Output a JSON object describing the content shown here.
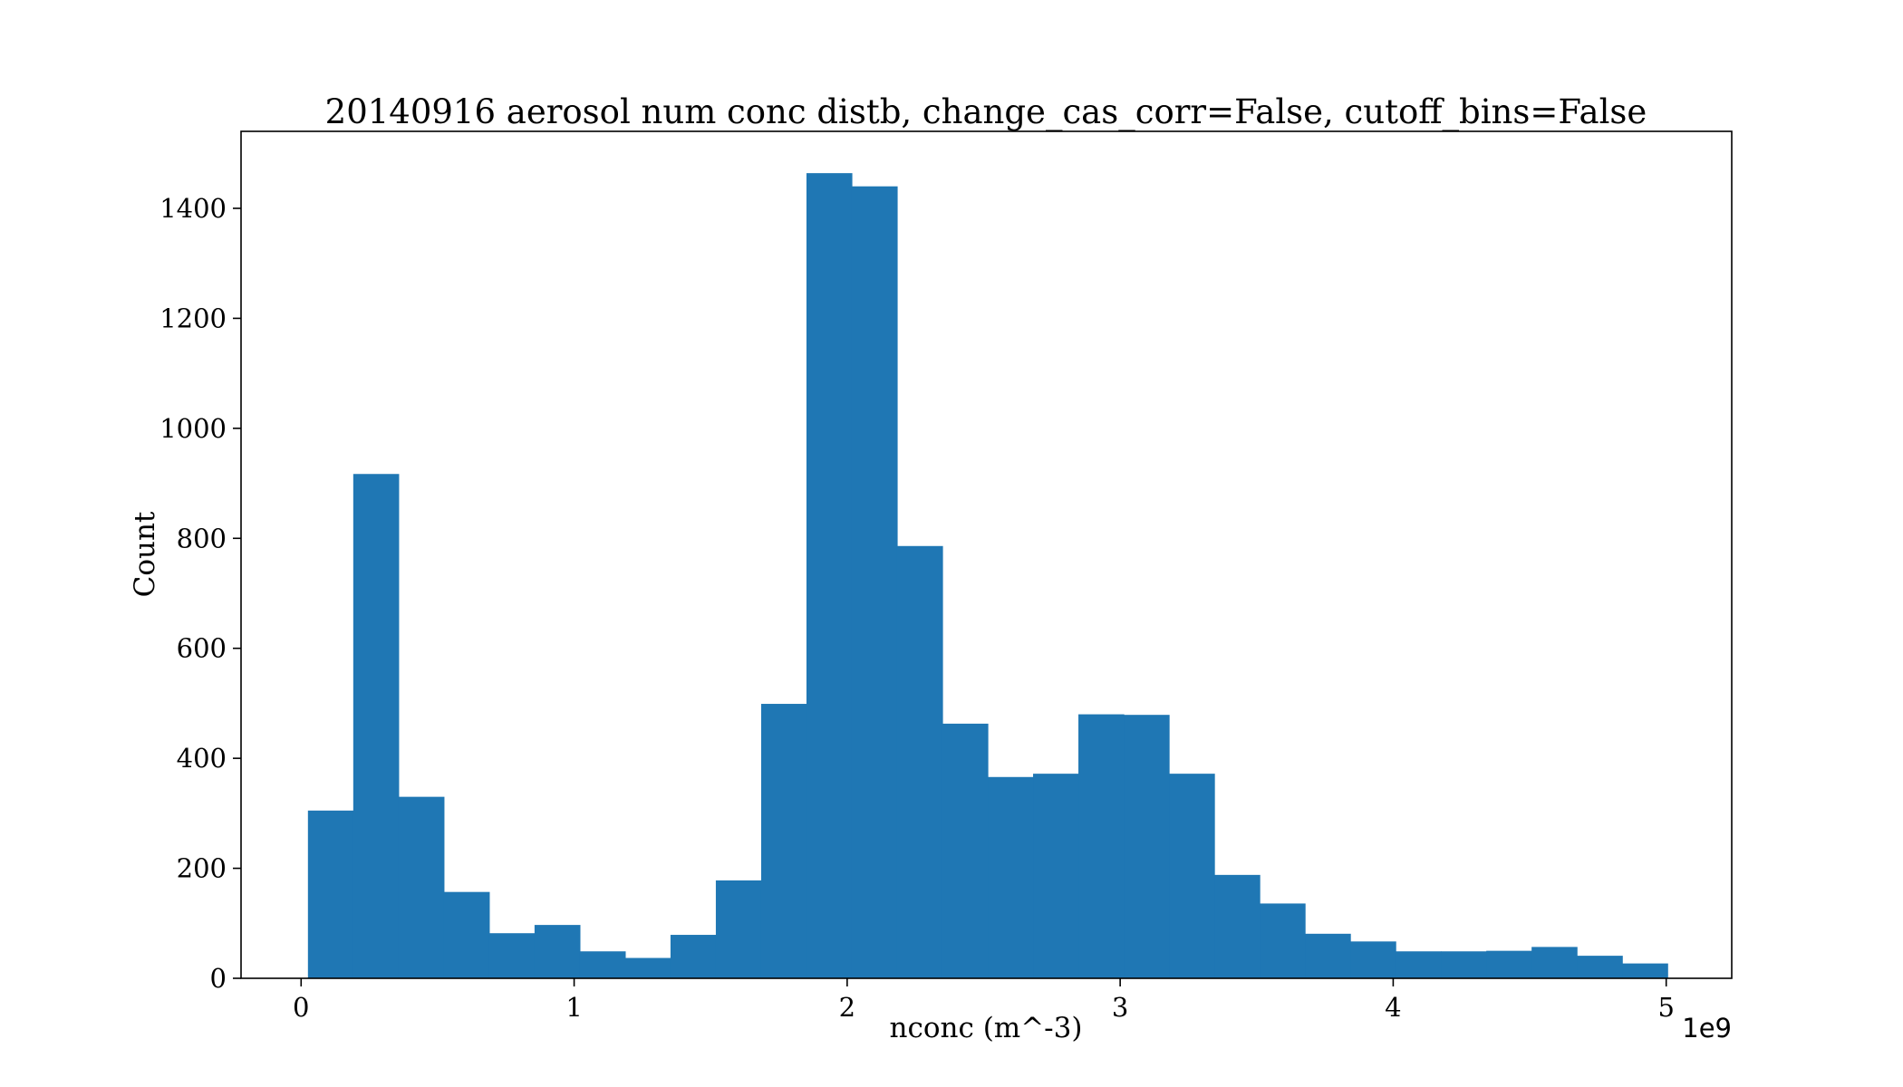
{
  "chart_data": {
    "type": "bar",
    "title": "20140916 aerosol num conc distb, change_cas_corr=False, cutoff_bins=False",
    "xlabel": "nconc (m^-3)",
    "ylabel": "Count",
    "x_offset_label": "1e9",
    "xlim": [
      -0.22,
      5.24
    ],
    "ylim": [
      0,
      1540
    ],
    "x_ticks": [
      0,
      1,
      2,
      3,
      4,
      5
    ],
    "x_tick_labels": [
      "0",
      "1",
      "2",
      "3",
      "4",
      "5"
    ],
    "y_ticks": [
      0,
      200,
      400,
      600,
      800,
      1000,
      1200,
      1400
    ],
    "y_tick_labels": [
      "0",
      "200",
      "400",
      "600",
      "800",
      "1000",
      "1200",
      "1400"
    ],
    "bin_edges": [
      0.025,
      0.191,
      0.357,
      0.523,
      0.689,
      0.855,
      1.021,
      1.187,
      1.353,
      1.519,
      1.685,
      1.851,
      2.017,
      2.183,
      2.349,
      2.515,
      2.681,
      2.847,
      3.013,
      3.179,
      3.345,
      3.511,
      3.677,
      3.843,
      4.009,
      4.175,
      4.341,
      4.507,
      4.673,
      4.839,
      5.005
    ],
    "values": [
      305,
      917,
      330,
      157,
      82,
      97,
      49,
      37,
      79,
      178,
      499,
      1464,
      1440,
      786,
      463,
      366,
      372,
      480,
      479,
      372,
      188,
      136,
      81,
      67,
      49,
      49,
      50,
      57,
      41,
      27
    ],
    "bar_color": "#1f77b4",
    "grid": false,
    "legend": "none"
  }
}
